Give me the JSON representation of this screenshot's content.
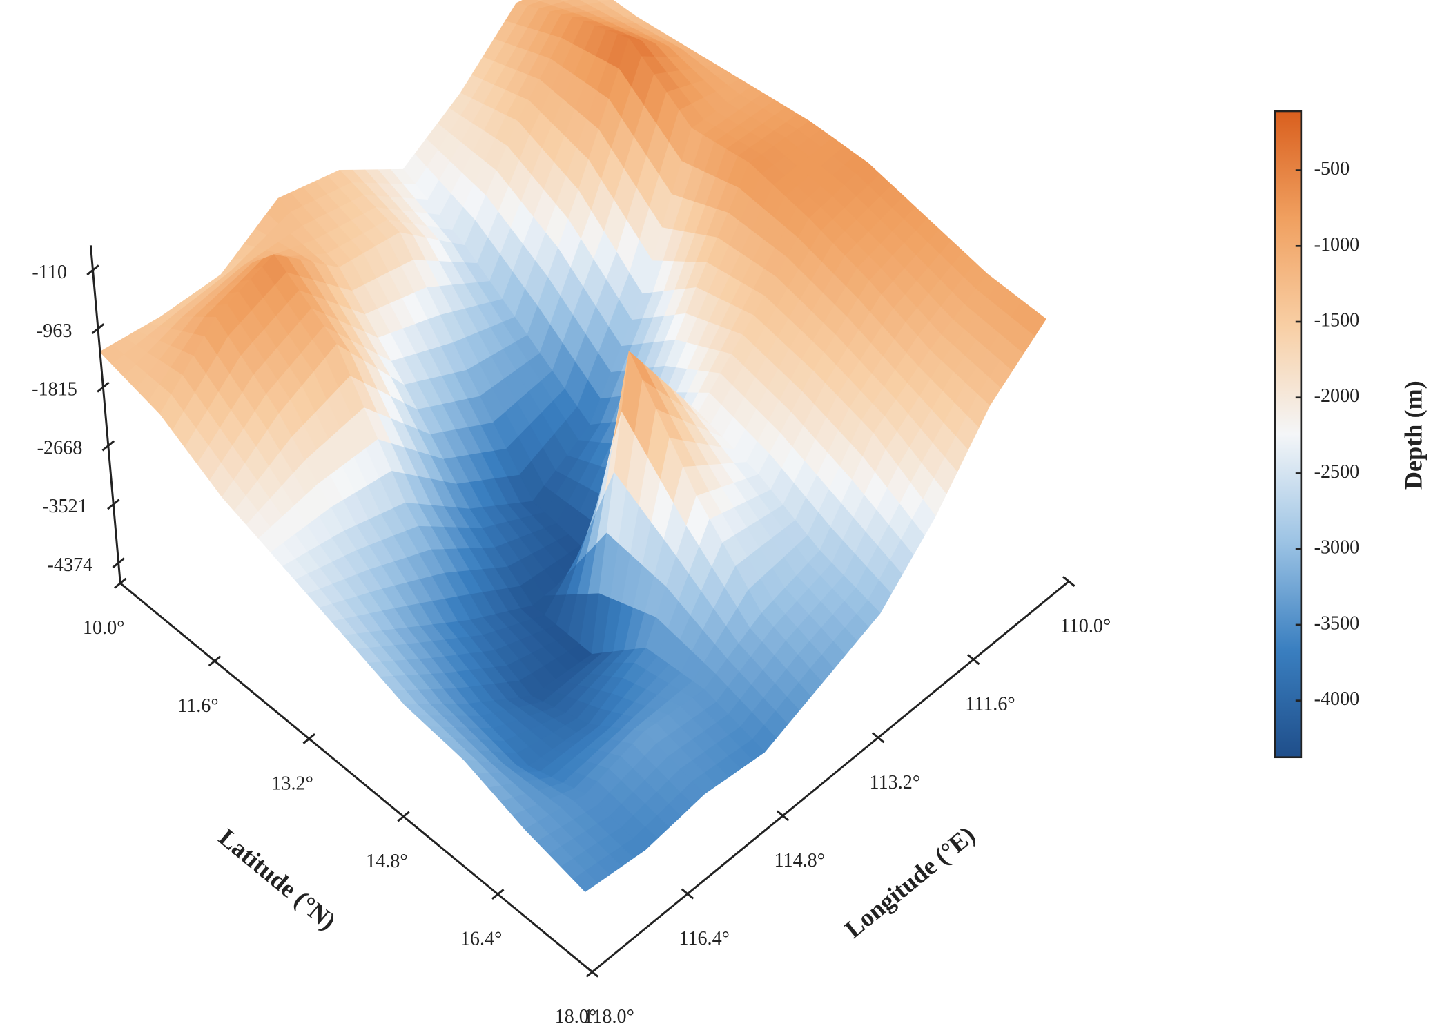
{
  "chart_data": {
    "type": "surface",
    "x_label": "Longitude (°E)",
    "y_label": "Latitude (°N)",
    "colorbar_label": "Depth (m)",
    "x": [
      110,
      111,
      112,
      113,
      114,
      115,
      116,
      117,
      118
    ],
    "y": [
      10,
      11,
      12,
      13,
      14,
      15,
      16,
      17,
      18
    ],
    "z": [
      [
        -1500,
        -1200,
        -1800,
        -2200,
        -1500,
        -1200,
        -1600,
        -1500,
        -1300
      ],
      [
        -1400,
        -700,
        -1500,
        -2600,
        -1700,
        -1500,
        -600,
        -800,
        -1500
      ],
      [
        -1200,
        -300,
        -1800,
        -3200,
        -3000,
        -2500,
        -1200,
        -1500,
        -2000
      ],
      [
        -1000,
        -900,
        -2600,
        -3800,
        -4200,
        -3600,
        -2800,
        -2500,
        -2300
      ],
      [
        -800,
        -700,
        -1800,
        -3000,
        -4300,
        -4300,
        -3800,
        -3200,
        -2600
      ],
      [
        -700,
        -800,
        -1500,
        -2200,
        -600,
        -4300,
        -4200,
        -3600,
        -2900
      ],
      [
        -800,
        -1000,
        -1600,
        -2400,
        -2000,
        -3500,
        -3900,
        -3800,
        -3000
      ],
      [
        -900,
        -1300,
        -1800,
        -2800,
        -3000,
        -3400,
        -3300,
        -3500,
        -3300
      ],
      [
        -850,
        -1400,
        -2300,
        -3000,
        -3300,
        -3600,
        -3500,
        -3600,
        -3500
      ]
    ],
    "xlim": [
      110,
      118
    ],
    "ylim": [
      10,
      18
    ],
    "zlim": [
      -4670,
      250
    ],
    "xticks": [
      {
        "value": 110,
        "label": "110.0°"
      },
      {
        "value": 111.6,
        "label": "111.6°"
      },
      {
        "value": 113.2,
        "label": "113.2°"
      },
      {
        "value": 114.8,
        "label": "114.8°"
      },
      {
        "value": 116.4,
        "label": "116.4°"
      },
      {
        "value": 118,
        "label": "118.0°"
      }
    ],
    "yticks": [
      {
        "value": 10,
        "label": "10.0°"
      },
      {
        "value": 11.6,
        "label": "11.6°"
      },
      {
        "value": 13.2,
        "label": "13.2°"
      },
      {
        "value": 14.8,
        "label": "14.8°"
      },
      {
        "value": 16.4,
        "label": "16.4°"
      },
      {
        "value": 18,
        "label": "18.0°"
      }
    ],
    "zticks": [
      -110,
      -963,
      -1815,
      -2668,
      -3521,
      -4374
    ],
    "clim": [
      -4374,
      -110
    ],
    "cticks": [
      -500,
      -1000,
      -1500,
      -2000,
      -2500,
      -3000,
      -3500,
      -4000
    ],
    "colormap": [
      "#1f4e8a",
      "#3a7fc0",
      "#9cc3e4",
      "#f4f6f8",
      "#f8cfa5",
      "#f0a060",
      "#d95f1e"
    ]
  }
}
